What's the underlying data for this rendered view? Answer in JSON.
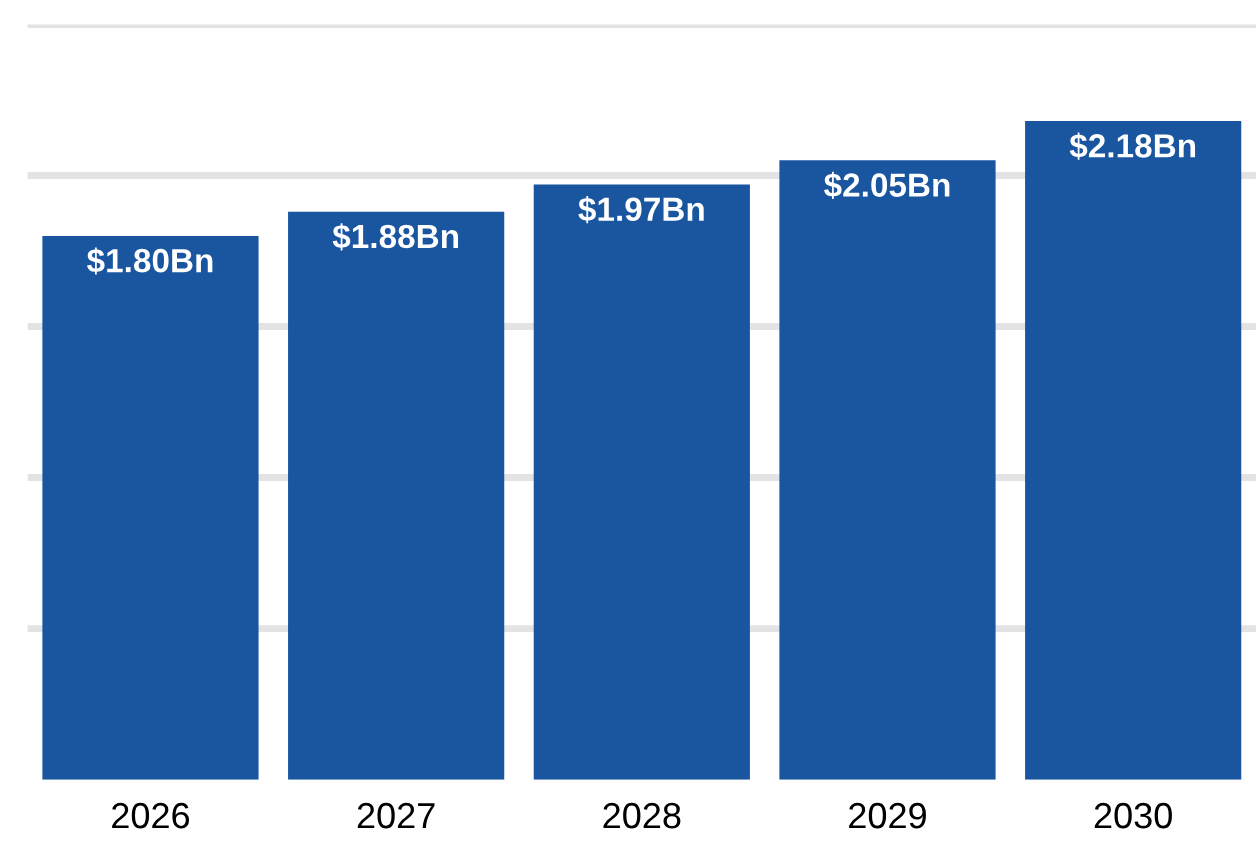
{
  "chart_data": {
    "type": "bar",
    "categories": [
      "2026",
      "2027",
      "2028",
      "2029",
      "2030"
    ],
    "values": [
      1.8,
      1.88,
      1.97,
      2.05,
      2.18
    ],
    "value_labels": [
      "$1.80Bn",
      "$1.88Bn",
      "$1.97Bn",
      "$2.05Bn",
      "$2.18Bn"
    ],
    "color": "#1a56a0",
    "ylim": [
      0,
      2.5
    ],
    "yticks": [
      {
        "value": 0.5,
        "label": null
      },
      {
        "value": 1.0,
        "label": null
      },
      {
        "value": 1.5,
        "label": null
      },
      {
        "value": 2.0,
        "label": null
      },
      {
        "value": 2.5,
        "label": null
      }
    ],
    "tick_labels": "x",
    "grid": "y"
  }
}
